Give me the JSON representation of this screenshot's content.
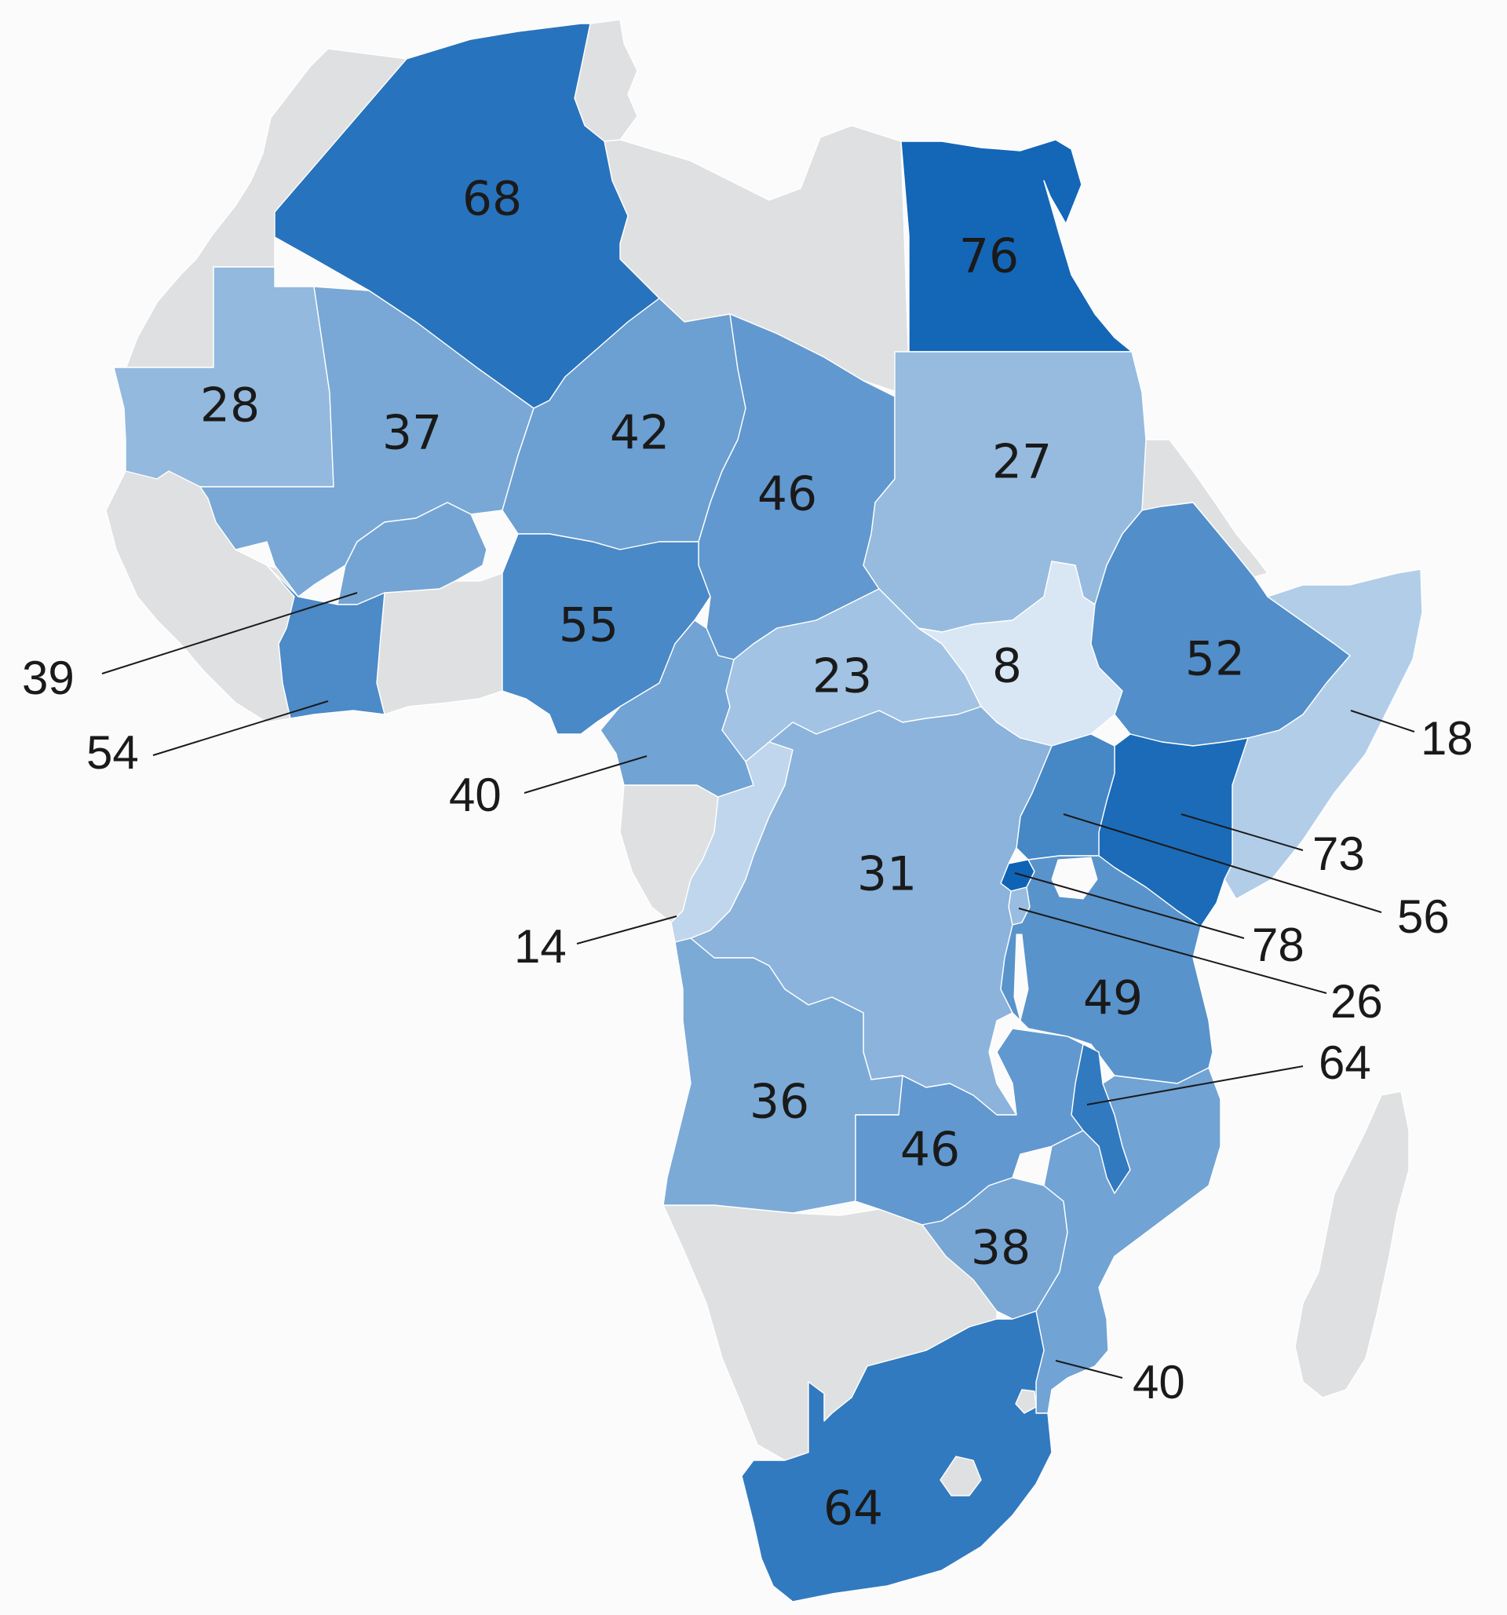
{
  "colors": {
    "background": "#fbfbfb",
    "no_data": "#dfe0e1",
    "scale_low": "#d9e6f4",
    "scale_high": "#0f63b5",
    "border": "#ffffff",
    "text": "#1a1a1a"
  },
  "regions": [
    {
      "id": "algeria",
      "value": 68,
      "label": "68"
    },
    {
      "id": "egypt",
      "value": 76,
      "label": "76"
    },
    {
      "id": "mauritania",
      "value": 28,
      "label": "28"
    },
    {
      "id": "mali",
      "value": 37,
      "label": "37"
    },
    {
      "id": "niger",
      "value": 42,
      "label": "42"
    },
    {
      "id": "chad",
      "value": 46,
      "label": "46"
    },
    {
      "id": "sudan",
      "value": 27,
      "label": "27"
    },
    {
      "id": "burkina-faso",
      "value": 39,
      "label": "39"
    },
    {
      "id": "cote-divoire",
      "value": 54,
      "label": "54"
    },
    {
      "id": "nigeria",
      "value": 55,
      "label": "55"
    },
    {
      "id": "cameroon",
      "value": 40,
      "label": "40"
    },
    {
      "id": "central-african-republic",
      "value": 23,
      "label": "23"
    },
    {
      "id": "south-sudan",
      "value": 8,
      "label": "8"
    },
    {
      "id": "ethiopia",
      "value": 52,
      "label": "52"
    },
    {
      "id": "somalia",
      "value": 18,
      "label": "18"
    },
    {
      "id": "kenya",
      "value": 73,
      "label": "73"
    },
    {
      "id": "uganda",
      "value": 56,
      "label": "56"
    },
    {
      "id": "rwanda",
      "value": 78,
      "label": "78"
    },
    {
      "id": "burundi",
      "value": 26,
      "label": "26"
    },
    {
      "id": "congo",
      "value": 14,
      "label": "14"
    },
    {
      "id": "dr-congo",
      "value": 31,
      "label": "31"
    },
    {
      "id": "tanzania",
      "value": 49,
      "label": "49"
    },
    {
      "id": "malawi",
      "value": 64,
      "label": "64"
    },
    {
      "id": "angola",
      "value": 36,
      "label": "36"
    },
    {
      "id": "zambia",
      "value": 46,
      "label": "46"
    },
    {
      "id": "zimbabwe",
      "value": 38,
      "label": "38"
    },
    {
      "id": "mozambique",
      "value": 40,
      "label": "40"
    },
    {
      "id": "south-africa",
      "value": 64,
      "label": "64"
    }
  ],
  "no_data_regions": [
    "morocco",
    "western-sahara",
    "tunisia",
    "libya",
    "senegal",
    "gambia",
    "guinea-bissau",
    "guinea",
    "sierra-leone",
    "liberia",
    "ghana",
    "togo",
    "benin",
    "equatorial-guinea",
    "gabon",
    "eritrea",
    "djibouti",
    "namibia",
    "botswana",
    "lesotho",
    "eswatini",
    "madagascar"
  ]
}
